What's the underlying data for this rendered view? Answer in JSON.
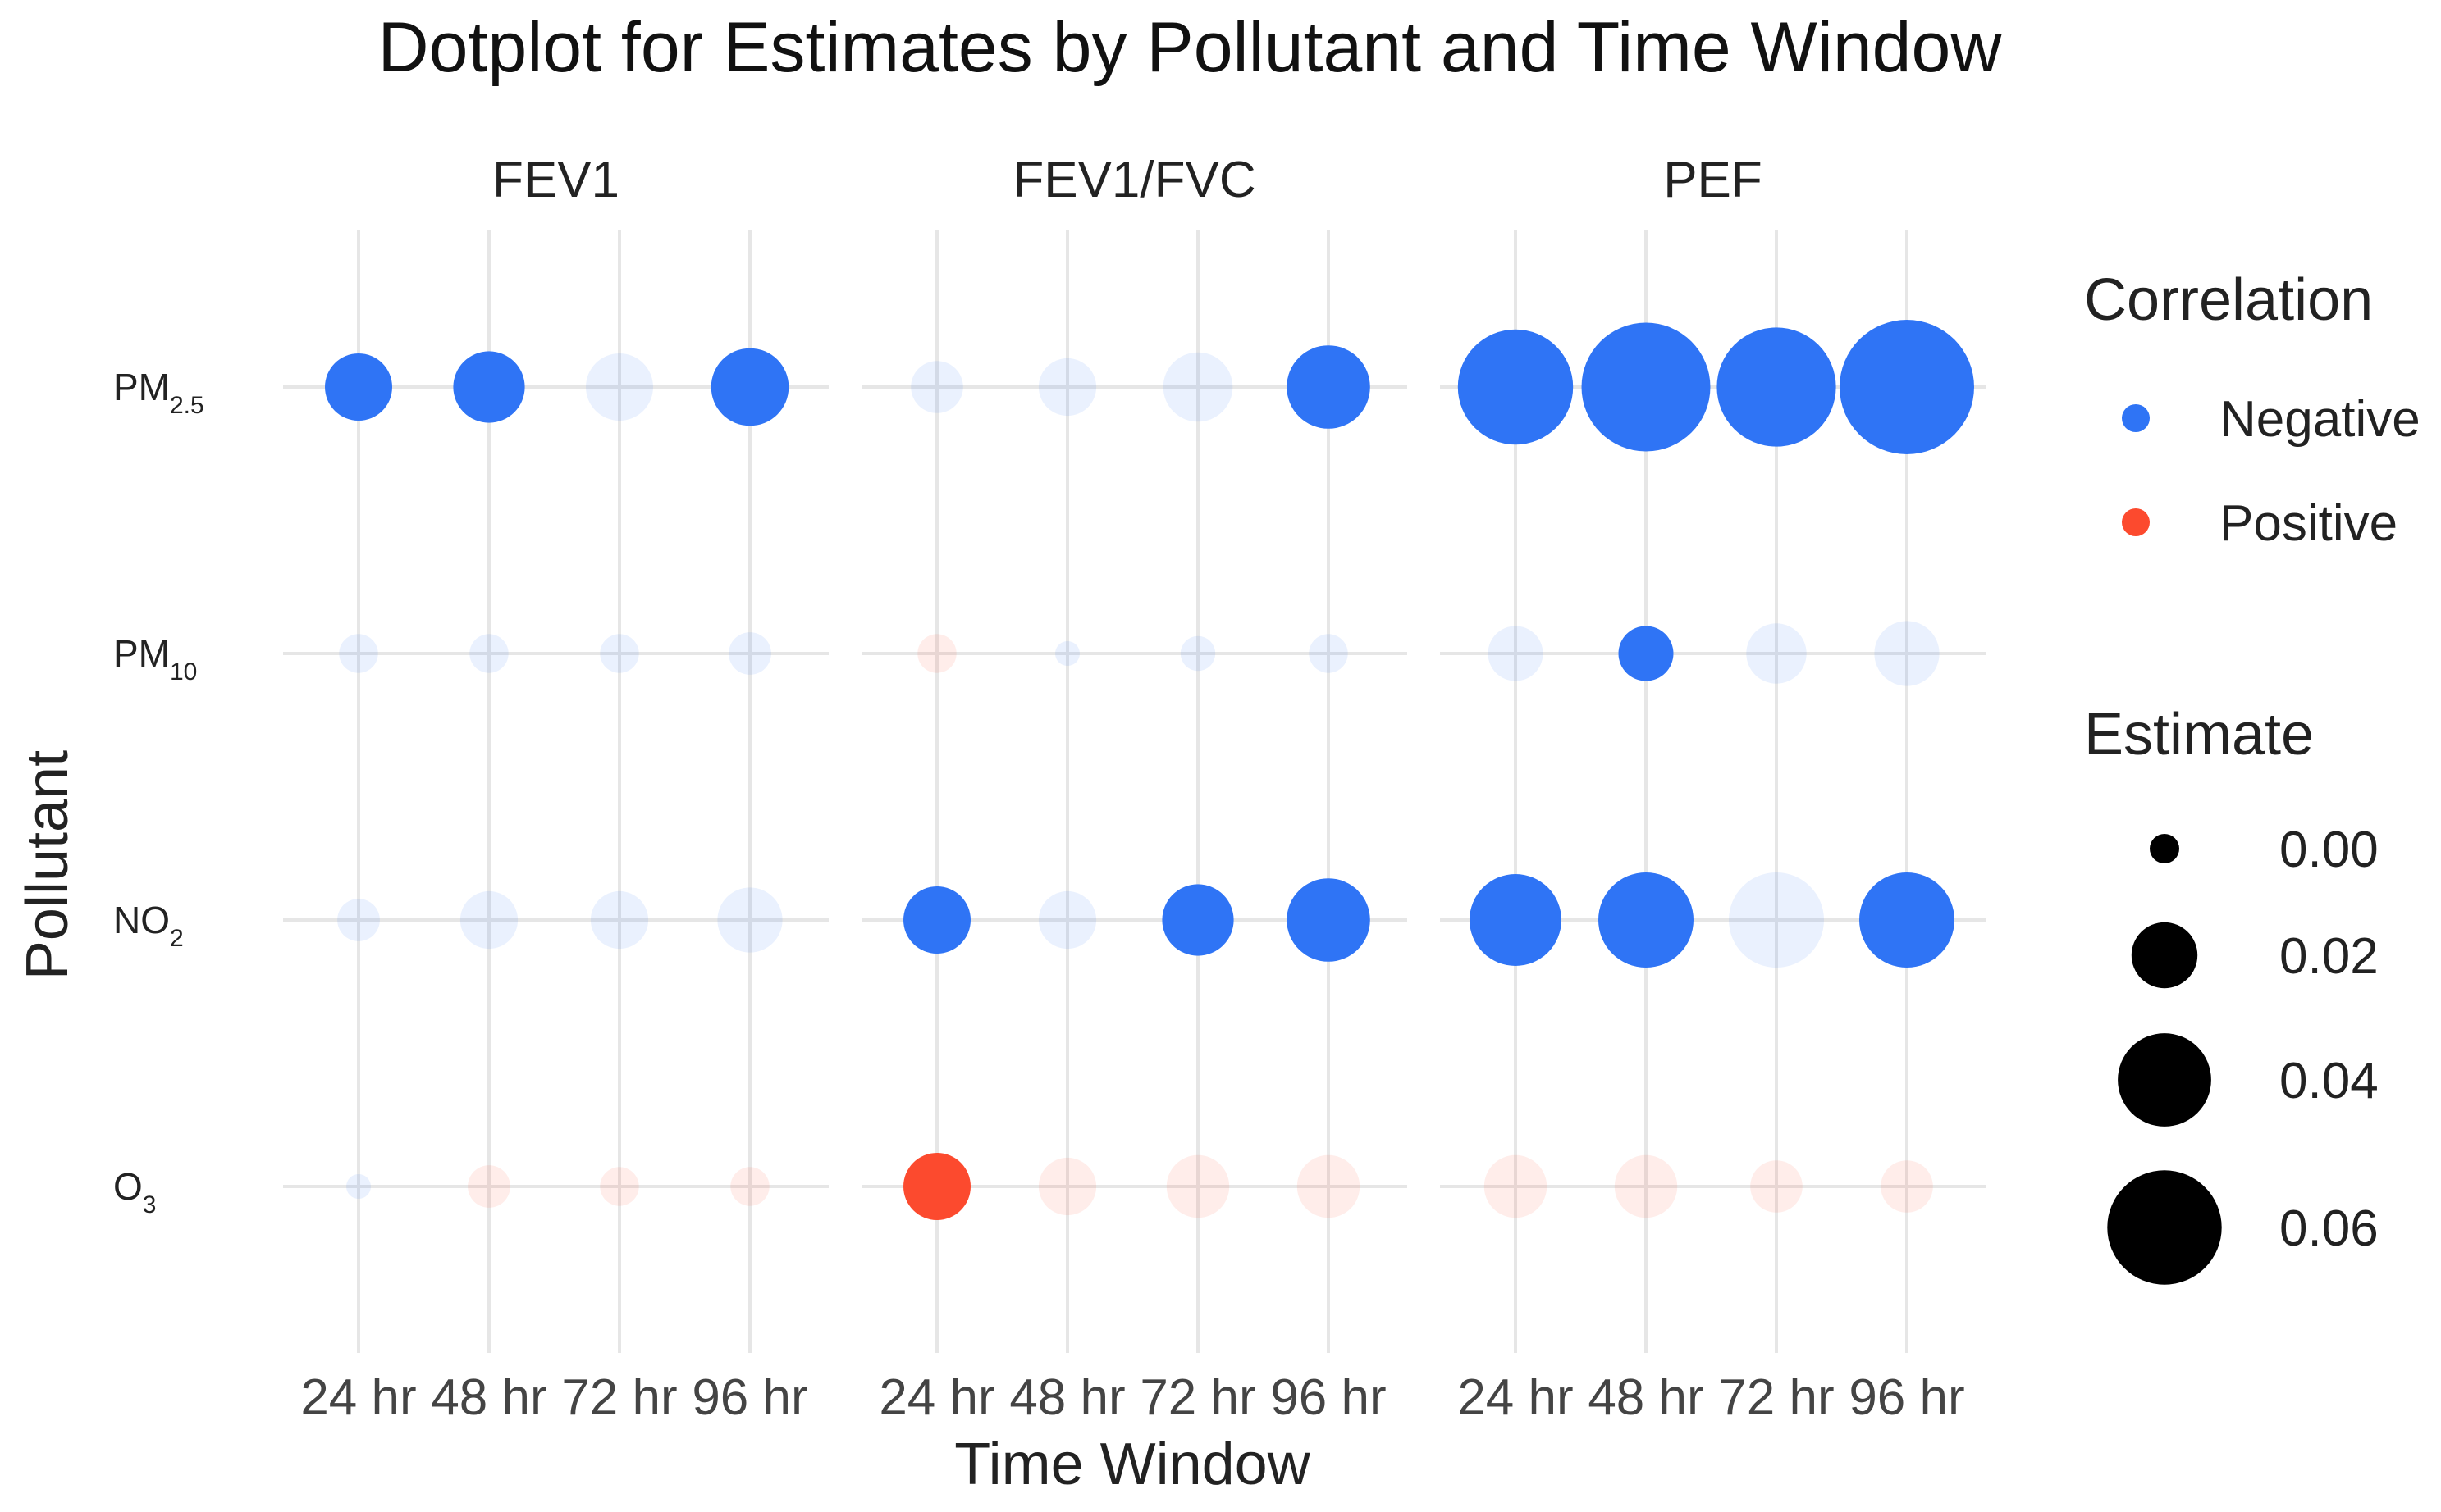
{
  "chart_data": {
    "type": "scatter",
    "title": "Dotplot for Estimates by Pollutant and Time Window",
    "xlabel": "Time Window",
    "ylabel": "Pollutant",
    "facets": [
      "FEV1",
      "FEV1/FVC",
      "PEF"
    ],
    "x_categories": [
      "24 hr",
      "48 hr",
      "72 hr",
      "96 hr"
    ],
    "y_categories": [
      {
        "base": "PM",
        "sub": "2.5"
      },
      {
        "base": "PM",
        "sub": "10"
      },
      {
        "base": "NO",
        "sub": "2"
      },
      {
        "base": "O",
        "sub": "3"
      }
    ],
    "colors": {
      "Negative": "#2f74f5",
      "Positive": "#fc4a2e"
    },
    "faded_opacity": 0.1,
    "points": [
      {
        "facet": "FEV1",
        "pollutant": 0,
        "window": 0,
        "estimate": 0.015,
        "correlation": "Negative",
        "highlight": true
      },
      {
        "facet": "FEV1",
        "pollutant": 0,
        "window": 1,
        "estimate": 0.017,
        "correlation": "Negative",
        "highlight": true
      },
      {
        "facet": "FEV1",
        "pollutant": 0,
        "window": 2,
        "estimate": 0.015,
        "correlation": "Negative",
        "highlight": false
      },
      {
        "facet": "FEV1",
        "pollutant": 0,
        "window": 3,
        "estimate": 0.02,
        "correlation": "Negative",
        "highlight": true
      },
      {
        "facet": "FEV1",
        "pollutant": 1,
        "window": 0,
        "estimate": 0.005,
        "correlation": "Negative",
        "highlight": false
      },
      {
        "facet": "FEV1",
        "pollutant": 1,
        "window": 1,
        "estimate": 0.005,
        "correlation": "Negative",
        "highlight": false
      },
      {
        "facet": "FEV1",
        "pollutant": 1,
        "window": 2,
        "estimate": 0.005,
        "correlation": "Negative",
        "highlight": false
      },
      {
        "facet": "FEV1",
        "pollutant": 1,
        "window": 3,
        "estimate": 0.006,
        "correlation": "Negative",
        "highlight": false
      },
      {
        "facet": "FEV1",
        "pollutant": 2,
        "window": 0,
        "estimate": 0.006,
        "correlation": "Negative",
        "highlight": false
      },
      {
        "facet": "FEV1",
        "pollutant": 2,
        "window": 1,
        "estimate": 0.011,
        "correlation": "Negative",
        "highlight": false
      },
      {
        "facet": "FEV1",
        "pollutant": 2,
        "window": 2,
        "estimate": 0.011,
        "correlation": "Negative",
        "highlight": false
      },
      {
        "facet": "FEV1",
        "pollutant": 2,
        "window": 3,
        "estimate": 0.014,
        "correlation": "Negative",
        "highlight": false
      },
      {
        "facet": "FEV1",
        "pollutant": 3,
        "window": 0,
        "estimate": 0.002,
        "correlation": "Negative",
        "highlight": false
      },
      {
        "facet": "FEV1",
        "pollutant": 3,
        "window": 1,
        "estimate": 0.006,
        "correlation": "Positive",
        "highlight": false
      },
      {
        "facet": "FEV1",
        "pollutant": 3,
        "window": 2,
        "estimate": 0.005,
        "correlation": "Positive",
        "highlight": false
      },
      {
        "facet": "FEV1",
        "pollutant": 3,
        "window": 3,
        "estimate": 0.005,
        "correlation": "Positive",
        "highlight": false
      },
      {
        "facet": "FEV1/FVC",
        "pollutant": 0,
        "window": 0,
        "estimate": 0.009,
        "correlation": "Negative",
        "highlight": false
      },
      {
        "facet": "FEV1/FVC",
        "pollutant": 0,
        "window": 1,
        "estimate": 0.011,
        "correlation": "Negative",
        "highlight": false
      },
      {
        "facet": "FEV1/FVC",
        "pollutant": 0,
        "window": 2,
        "estimate": 0.016,
        "correlation": "Negative",
        "highlight": false
      },
      {
        "facet": "FEV1/FVC",
        "pollutant": 0,
        "window": 3,
        "estimate": 0.023,
        "correlation": "Negative",
        "highlight": true
      },
      {
        "facet": "FEV1/FVC",
        "pollutant": 1,
        "window": 0,
        "estimate": 0.005,
        "correlation": "Positive",
        "highlight": false
      },
      {
        "facet": "FEV1/FVC",
        "pollutant": 1,
        "window": 1,
        "estimate": 0.002,
        "correlation": "Negative",
        "highlight": false
      },
      {
        "facet": "FEV1/FVC",
        "pollutant": 1,
        "window": 2,
        "estimate": 0.004,
        "correlation": "Negative",
        "highlight": false
      },
      {
        "facet": "FEV1/FVC",
        "pollutant": 1,
        "window": 3,
        "estimate": 0.005,
        "correlation": "Negative",
        "highlight": false
      },
      {
        "facet": "FEV1/FVC",
        "pollutant": 2,
        "window": 0,
        "estimate": 0.015,
        "correlation": "Negative",
        "highlight": true
      },
      {
        "facet": "FEV1/FVC",
        "pollutant": 2,
        "window": 1,
        "estimate": 0.011,
        "correlation": "Negative",
        "highlight": false
      },
      {
        "facet": "FEV1/FVC",
        "pollutant": 2,
        "window": 2,
        "estimate": 0.017,
        "correlation": "Negative",
        "highlight": true
      },
      {
        "facet": "FEV1/FVC",
        "pollutant": 2,
        "window": 3,
        "estimate": 0.023,
        "correlation": "Negative",
        "highlight": true
      },
      {
        "facet": "FEV1/FVC",
        "pollutant": 3,
        "window": 0,
        "estimate": 0.015,
        "correlation": "Positive",
        "highlight": true
      },
      {
        "facet": "FEV1/FVC",
        "pollutant": 3,
        "window": 1,
        "estimate": 0.011,
        "correlation": "Positive",
        "highlight": false
      },
      {
        "facet": "FEV1/FVC",
        "pollutant": 3,
        "window": 2,
        "estimate": 0.013,
        "correlation": "Positive",
        "highlight": false
      },
      {
        "facet": "FEV1/FVC",
        "pollutant": 3,
        "window": 3,
        "estimate": 0.013,
        "correlation": "Positive",
        "highlight": false
      },
      {
        "facet": "PEF",
        "pollutant": 0,
        "window": 0,
        "estimate": 0.044,
        "correlation": "Negative",
        "highlight": true
      },
      {
        "facet": "PEF",
        "pollutant": 0,
        "window": 1,
        "estimate": 0.055,
        "correlation": "Negative",
        "highlight": true
      },
      {
        "facet": "PEF",
        "pollutant": 0,
        "window": 2,
        "estimate": 0.047,
        "correlation": "Negative",
        "highlight": true
      },
      {
        "facet": "PEF",
        "pollutant": 0,
        "window": 3,
        "estimate": 0.06,
        "correlation": "Negative",
        "highlight": true
      },
      {
        "facet": "PEF",
        "pollutant": 1,
        "window": 0,
        "estimate": 0.01,
        "correlation": "Negative",
        "highlight": false
      },
      {
        "facet": "PEF",
        "pollutant": 1,
        "window": 1,
        "estimate": 0.01,
        "correlation": "Negative",
        "highlight": true
      },
      {
        "facet": "PEF",
        "pollutant": 1,
        "window": 2,
        "estimate": 0.012,
        "correlation": "Negative",
        "highlight": false
      },
      {
        "facet": "PEF",
        "pollutant": 1,
        "window": 3,
        "estimate": 0.014,
        "correlation": "Negative",
        "highlight": false
      },
      {
        "facet": "PEF",
        "pollutant": 2,
        "window": 0,
        "estimate": 0.028,
        "correlation": "Negative",
        "highlight": true
      },
      {
        "facet": "PEF",
        "pollutant": 2,
        "window": 1,
        "estimate": 0.03,
        "correlation": "Negative",
        "highlight": true
      },
      {
        "facet": "PEF",
        "pollutant": 2,
        "window": 2,
        "estimate": 0.03,
        "correlation": "Negative",
        "highlight": false
      },
      {
        "facet": "PEF",
        "pollutant": 2,
        "window": 3,
        "estimate": 0.03,
        "correlation": "Negative",
        "highlight": true
      },
      {
        "facet": "PEF",
        "pollutant": 3,
        "window": 0,
        "estimate": 0.013,
        "correlation": "Positive",
        "highlight": false
      },
      {
        "facet": "PEF",
        "pollutant": 3,
        "window": 1,
        "estimate": 0.013,
        "correlation": "Positive",
        "highlight": false
      },
      {
        "facet": "PEF",
        "pollutant": 3,
        "window": 2,
        "estimate": 0.009,
        "correlation": "Positive",
        "highlight": false
      },
      {
        "facet": "PEF",
        "pollutant": 3,
        "window": 3,
        "estimate": 0.009,
        "correlation": "Positive",
        "highlight": false
      }
    ],
    "legend_color": {
      "title": "Correlation",
      "entries": [
        {
          "label": "Negative",
          "key": "Negative"
        },
        {
          "label": "Positive",
          "key": "Positive"
        }
      ]
    },
    "legend_size": {
      "title": "Estimate",
      "entries": [
        {
          "label": "0.00",
          "value": 0.0
        },
        {
          "label": "0.02",
          "value": 0.02
        },
        {
          "label": "0.04",
          "value": 0.04
        },
        {
          "label": "0.06",
          "value": 0.06
        }
      ]
    },
    "size_range": [
      0,
      0.06
    ]
  }
}
